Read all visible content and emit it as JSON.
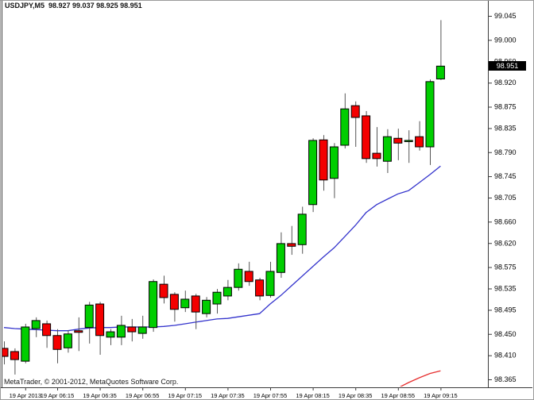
{
  "window": {
    "title": "USDJPY,M5  98.927 99.037 98.925 98.951",
    "copyright": "MetaTrader, © 2001-2012, MetaQuotes Software Corp."
  },
  "price_scale": {
    "current": "98.951",
    "labels": [
      "99.045",
      "99.000",
      "98.960",
      "98.920",
      "98.875",
      "98.835",
      "98.790",
      "98.745",
      "98.705",
      "98.660",
      "98.620",
      "98.575",
      "98.535",
      "98.495",
      "98.450",
      "98.410",
      "98.365"
    ]
  },
  "time_scale": {
    "labels": [
      {
        "text": "19 Apr 2013",
        "candle": 2
      },
      {
        "text": "19 Apr 06:15",
        "candle": 5
      },
      {
        "text": "19 Apr 06:35",
        "candle": 9
      },
      {
        "text": "19 Apr 06:55",
        "candle": 13
      },
      {
        "text": "19 Apr 07:15",
        "candle": 17
      },
      {
        "text": "19 Apr 07:35",
        "candle": 21
      },
      {
        "text": "19 Apr 07:55",
        "candle": 25
      },
      {
        "text": "19 Apr 08:15",
        "candle": 29
      },
      {
        "text": "19 Apr 08:35",
        "candle": 33
      },
      {
        "text": "19 Apr 08:55",
        "candle": 37
      },
      {
        "text": "19 Apr 09:15",
        "candle": 41
      }
    ]
  },
  "chart_data": {
    "type": "candlestick",
    "symbol": "USDJPY",
    "timeframe": "M5",
    "title": "USDJPY,M5",
    "ohlc_header": {
      "open": "98.927",
      "high": "99.037",
      "low": "98.925",
      "close": "98.951"
    },
    "ylim": [
      98.365,
      99.045
    ],
    "grid": false,
    "legend_position": "none",
    "candles": [
      {
        "o": 98.423,
        "h": 98.436,
        "l": 98.393,
        "c": 98.408
      },
      {
        "o": 98.417,
        "h": 98.423,
        "l": 98.374,
        "c": 98.402
      },
      {
        "o": 98.399,
        "h": 98.469,
        "l": 98.395,
        "c": 98.463
      },
      {
        "o": 98.46,
        "h": 98.481,
        "l": 98.444,
        "c": 98.475
      },
      {
        "o": 98.469,
        "h": 98.475,
        "l": 98.424,
        "c": 98.447
      },
      {
        "o": 98.447,
        "h": 98.459,
        "l": 98.395,
        "c": 98.421
      },
      {
        "o": 98.424,
        "h": 98.457,
        "l": 98.415,
        "c": 98.45
      },
      {
        "o": 98.456,
        "h": 98.481,
        "l": 98.418,
        "c": 98.453
      },
      {
        "o": 98.462,
        "h": 98.51,
        "l": 98.432,
        "c": 98.504
      },
      {
        "o": 98.506,
        "h": 98.51,
        "l": 98.411,
        "c": 98.447
      },
      {
        "o": 98.444,
        "h": 98.459,
        "l": 98.429,
        "c": 98.454
      },
      {
        "o": 98.444,
        "h": 98.484,
        "l": 98.429,
        "c": 98.466
      },
      {
        "o": 98.463,
        "h": 98.478,
        "l": 98.436,
        "c": 98.454
      },
      {
        "o": 98.451,
        "h": 98.484,
        "l": 98.441,
        "c": 98.463
      },
      {
        "o": 98.462,
        "h": 98.552,
        "l": 98.454,
        "c": 98.548
      },
      {
        "o": 98.543,
        "h": 98.559,
        "l": 98.507,
        "c": 98.518
      },
      {
        "o": 98.524,
        "h": 98.528,
        "l": 98.473,
        "c": 98.496
      },
      {
        "o": 98.499,
        "h": 98.531,
        "l": 98.491,
        "c": 98.515
      },
      {
        "o": 98.521,
        "h": 98.525,
        "l": 98.459,
        "c": 98.491
      },
      {
        "o": 98.488,
        "h": 98.519,
        "l": 98.481,
        "c": 98.513
      },
      {
        "o": 98.506,
        "h": 98.534,
        "l": 98.488,
        "c": 98.528
      },
      {
        "o": 98.521,
        "h": 98.551,
        "l": 98.513,
        "c": 98.537
      },
      {
        "o": 98.537,
        "h": 98.582,
        "l": 98.531,
        "c": 98.571
      },
      {
        "o": 98.567,
        "h": 98.585,
        "l": 98.54,
        "c": 98.548
      },
      {
        "o": 98.551,
        "h": 98.555,
        "l": 98.513,
        "c": 98.521
      },
      {
        "o": 98.522,
        "h": 98.585,
        "l": 98.518,
        "c": 98.567
      },
      {
        "o": 98.565,
        "h": 98.64,
        "l": 98.555,
        "c": 98.619
      },
      {
        "o": 98.619,
        "h": 98.652,
        "l": 98.598,
        "c": 98.614
      },
      {
        "o": 98.617,
        "h": 98.688,
        "l": 98.6,
        "c": 98.674
      },
      {
        "o": 98.692,
        "h": 98.816,
        "l": 98.678,
        "c": 98.812
      },
      {
        "o": 98.813,
        "h": 98.822,
        "l": 98.718,
        "c": 98.738
      },
      {
        "o": 98.741,
        "h": 98.807,
        "l": 98.704,
        "c": 98.8
      },
      {
        "o": 98.803,
        "h": 98.9,
        "l": 98.797,
        "c": 98.871
      },
      {
        "o": 98.877,
        "h": 98.885,
        "l": 98.8,
        "c": 98.855
      },
      {
        "o": 98.858,
        "h": 98.867,
        "l": 98.77,
        "c": 98.778
      },
      {
        "o": 98.788,
        "h": 98.837,
        "l": 98.763,
        "c": 98.778
      },
      {
        "o": 98.773,
        "h": 98.833,
        "l": 98.751,
        "c": 98.819
      },
      {
        "o": 98.816,
        "h": 98.834,
        "l": 98.775,
        "c": 98.807
      },
      {
        "o": 98.81,
        "h": 98.831,
        "l": 98.77,
        "c": 98.812
      },
      {
        "o": 98.819,
        "h": 98.848,
        "l": 98.793,
        "c": 98.8
      },
      {
        "o": 98.8,
        "h": 98.926,
        "l": 98.766,
        "c": 98.922
      },
      {
        "o": 98.927,
        "h": 99.037,
        "l": 98.925,
        "c": 98.951
      }
    ],
    "series": [
      {
        "name": "ma-blue",
        "color": "#3333cc",
        "values": [
          98.462,
          98.46,
          98.459,
          98.458,
          98.457,
          98.456,
          98.456,
          98.459,
          98.461,
          98.462,
          98.462,
          98.463,
          98.463,
          98.463,
          98.463,
          98.464,
          98.466,
          98.469,
          98.472,
          98.475,
          98.478,
          98.479,
          98.482,
          98.485,
          98.488,
          98.506,
          98.522,
          98.54,
          98.558,
          98.576,
          98.594,
          98.611,
          98.632,
          98.653,
          98.677,
          98.692,
          98.702,
          98.712,
          98.718,
          98.733,
          98.748,
          98.764
        ]
      },
      {
        "name": "ma-red",
        "color": "#e62e2e",
        "values": [
          null,
          null,
          null,
          null,
          null,
          null,
          null,
          null,
          null,
          null,
          null,
          null,
          null,
          null,
          null,
          null,
          null,
          null,
          null,
          null,
          null,
          null,
          null,
          null,
          null,
          null,
          null,
          null,
          null,
          null,
          null,
          null,
          null,
          null,
          null,
          null,
          98.337,
          98.349,
          98.359,
          98.368,
          98.376,
          98.381
        ]
      }
    ]
  },
  "colors": {
    "background": "#ffffff",
    "bull": "#00ce00",
    "bear": "#f40000",
    "candle_outline": "#000000",
    "wick": "#555555",
    "axis_line": "#3c3c3c",
    "axis_text": "#000000",
    "window_border": "#9a9a9a",
    "price_tag_bg": "#000000",
    "price_tag_text": "#ffffff",
    "ma_blue": "#3333cc",
    "ma_red": "#e62e2e"
  }
}
